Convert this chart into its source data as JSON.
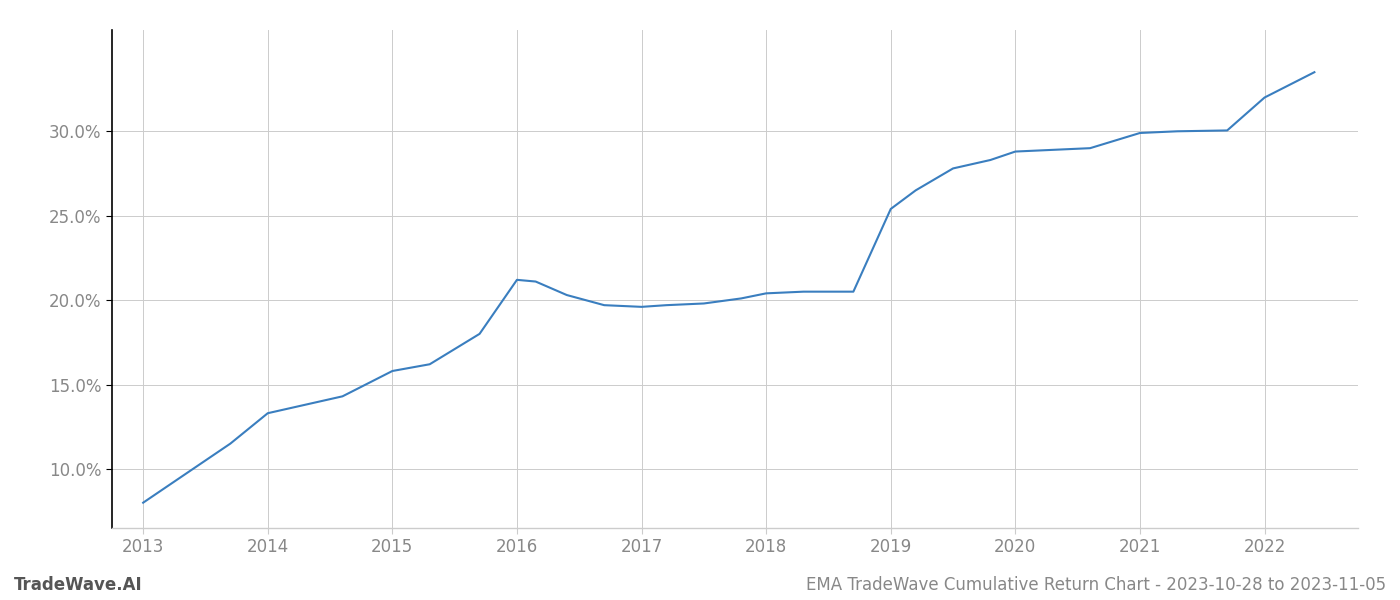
{
  "x": [
    2013.0,
    2013.3,
    2013.7,
    2014.0,
    2014.3,
    2014.6,
    2015.0,
    2015.3,
    2015.7,
    2016.0,
    2016.15,
    2016.4,
    2016.7,
    2017.0,
    2017.2,
    2017.5,
    2017.8,
    2018.0,
    2018.3,
    2018.7,
    2019.0,
    2019.2,
    2019.5,
    2019.8,
    2020.0,
    2020.3,
    2020.6,
    2021.0,
    2021.3,
    2021.7,
    2022.0,
    2022.4
  ],
  "y": [
    8.0,
    9.5,
    11.5,
    13.3,
    13.8,
    14.3,
    15.8,
    16.2,
    18.0,
    21.2,
    21.1,
    20.3,
    19.7,
    19.6,
    19.7,
    19.8,
    20.1,
    20.4,
    20.5,
    20.5,
    25.4,
    26.5,
    27.8,
    28.3,
    28.8,
    28.9,
    29.0,
    29.9,
    30.0,
    30.05,
    32.0,
    33.5
  ],
  "line_color": "#3a7ebf",
  "line_width": 1.5,
  "background_color": "#ffffff",
  "grid_color": "#cccccc",
  "tick_color": "#888888",
  "left_spine_color": "#000000",
  "bottom_spine_color": "#cccccc",
  "yticks": [
    10.0,
    15.0,
    20.0,
    25.0,
    30.0
  ],
  "xticks": [
    2013,
    2014,
    2015,
    2016,
    2017,
    2018,
    2019,
    2020,
    2021,
    2022
  ],
  "xlim": [
    2012.75,
    2022.75
  ],
  "ylim": [
    6.5,
    36.0
  ],
  "watermark_text": "TradeWave.AI",
  "watermark_color": "#555555",
  "watermark_fontsize": 12,
  "footer_text": "EMA TradeWave Cumulative Return Chart - 2023-10-28 to 2023-11-05",
  "footer_color": "#888888",
  "footer_fontsize": 12
}
